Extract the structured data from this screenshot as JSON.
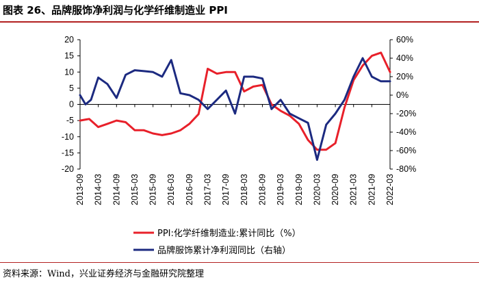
{
  "title": "图表 26、品牌服饰净利润与化学纤维制造业 PPI",
  "source": "资料来源：Wind，兴业证券经济与金融研究院整理",
  "chart_data": {
    "type": "line",
    "title": "图表 26、品牌服饰净利润与化学纤维制造业 PPI",
    "x_tick_labels": [
      "2013-09",
      "2014-03",
      "2014-09",
      "2015-03",
      "2015-09",
      "2016-03",
      "2016-09",
      "2017-03",
      "2017-09",
      "2018-03",
      "2018-09",
      "2019-03",
      "2019-09",
      "2020-03",
      "2020-09",
      "2021-03",
      "2021-09",
      "2022-03"
    ],
    "y_left": {
      "range": [
        -20,
        20
      ],
      "ticks": [
        20,
        15,
        10,
        5,
        0,
        -5,
        -10,
        -15,
        -20
      ],
      "tick_labels": [
        "20",
        "15",
        "10",
        "5",
        "0",
        "-5",
        "-10",
        "-15",
        "-20"
      ]
    },
    "y_right": {
      "range": [
        -80,
        60
      ],
      "ticks": [
        60,
        40,
        20,
        0,
        -20,
        -40,
        -60,
        -80
      ],
      "tick_labels": [
        "60%",
        "40%",
        "20%",
        "0%",
        "-20%",
        "-40%",
        "-60%",
        "-80%"
      ]
    },
    "series": [
      {
        "name": "PPI:化学纤维制造业:累计同比（%）",
        "axis": "left",
        "color": "#e8202a",
        "x": [
          0,
          0.5,
          1,
          1.5,
          2,
          2.5,
          3,
          3.5,
          4,
          4.5,
          5,
          5.5,
          6,
          6.5,
          7,
          7.5,
          8,
          8.5,
          9,
          9.5,
          10,
          10.5,
          11,
          11.5,
          12,
          12.5,
          13,
          13.5,
          14,
          14.5,
          15,
          15.5,
          16,
          16.5,
          17
        ],
        "values": [
          -5,
          -4.5,
          -7,
          -6,
          -5,
          -5.5,
          -8,
          -8,
          -9,
          -9.5,
          -9,
          -8,
          -6,
          -3,
          11,
          9.5,
          10,
          10,
          4,
          5.5,
          6,
          0,
          -2,
          -3.5,
          -6,
          -11,
          -14,
          -14,
          -12,
          -1,
          7.5,
          12,
          15,
          16,
          10
        ]
      },
      {
        "name": "品牌服饰累计净利润同比（右轴）",
        "axis": "right",
        "color": "#1c2a80",
        "x": [
          0,
          0.3,
          0.6,
          1,
          1.5,
          2,
          2.5,
          3,
          3.5,
          4,
          4.5,
          5,
          5.5,
          6,
          6.5,
          7,
          7.5,
          8,
          8.5,
          9,
          9.5,
          10,
          10.5,
          11,
          11.5,
          12,
          12.5,
          13,
          13.5,
          14,
          14.5,
          15,
          15.5,
          16,
          16.5,
          17
        ],
        "values": [
          0,
          -10,
          -5,
          19,
          12,
          -3,
          22,
          27,
          26,
          25,
          20,
          38,
          2,
          0,
          -5,
          -15,
          -5,
          5,
          -20,
          20,
          20,
          18,
          -15,
          -5,
          -20,
          -25,
          -30,
          -70,
          -32,
          -20,
          -5,
          20,
          40,
          20,
          15,
          15
        ]
      }
    ]
  }
}
